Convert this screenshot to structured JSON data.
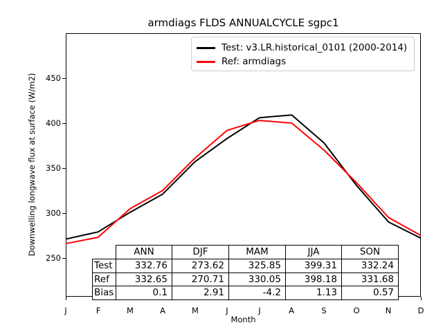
{
  "chart_data": {
    "type": "line",
    "title": "armdiags FLDS ANNUALCYCLE sgpc1",
    "xlabel": "Month",
    "ylabel": "Downwelling longwave flux at surface (W/m2)",
    "categories": [
      "J",
      "F",
      "M",
      "A",
      "M",
      "J",
      "J",
      "A",
      "S",
      "O",
      "N",
      "D"
    ],
    "y_ticks": [
      250,
      300,
      350,
      400,
      450
    ],
    "ylim": [
      207,
      500
    ],
    "grid": false,
    "legend_position": "upper right",
    "series": [
      {
        "name": "Test: v3.LR.historical_0101 (2000-2014)",
        "color": "#000000",
        "values": [
          271,
          279,
          301,
          321,
          357,
          383,
          406,
          409,
          378,
          331,
          290,
          272
        ],
        "values_estimated_from_pixels": true
      },
      {
        "name": "Ref: armdiags",
        "color": "#ff0000",
        "values": [
          266,
          273,
          305,
          325,
          361,
          392,
          403,
          400,
          370,
          334,
          295,
          275
        ],
        "values_estimated_from_pixels": true
      }
    ],
    "stats_table": {
      "col_headers": [
        "ANN",
        "DJF",
        "MAM",
        "JJA",
        "SON"
      ],
      "row_labels": [
        "Test",
        "Ref",
        "Bias"
      ],
      "rows": [
        [
          "332.76",
          "273.62",
          "325.85",
          "399.31",
          "332.24"
        ],
        [
          "332.65",
          "270.71",
          "330.05",
          "398.18",
          "331.68"
        ],
        [
          "0.1",
          "2.91",
          "-4.2",
          "1.13",
          "0.57"
        ]
      ]
    }
  }
}
